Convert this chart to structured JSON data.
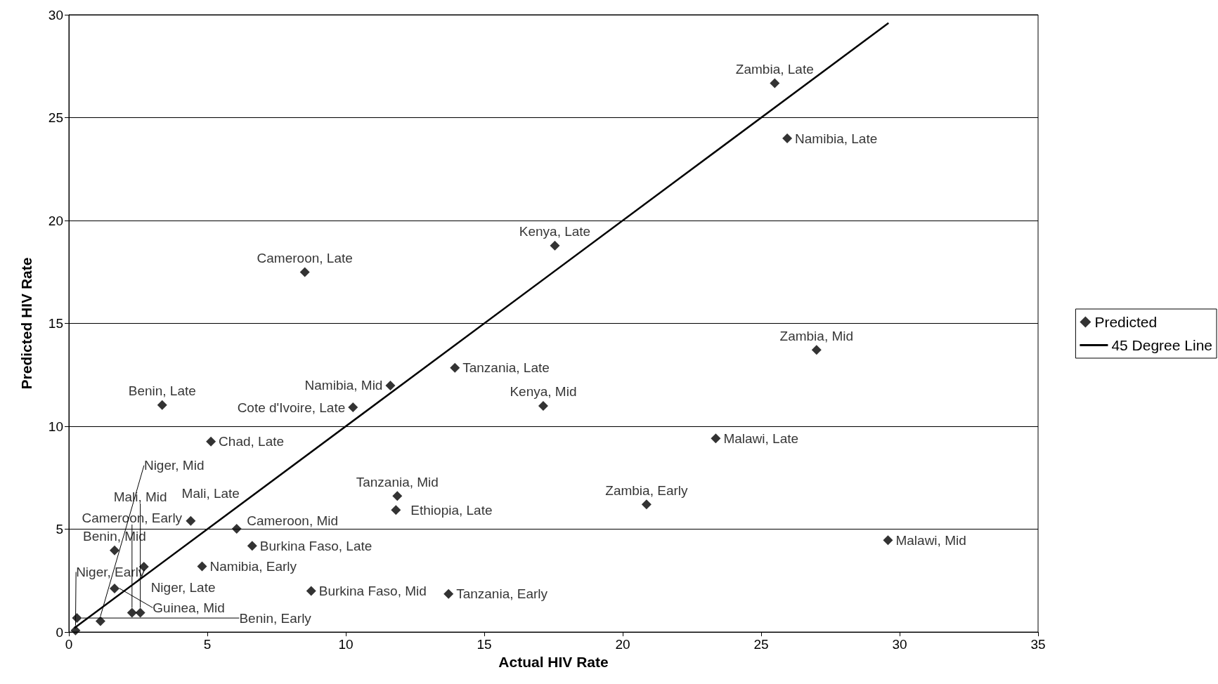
{
  "chart_data": {
    "type": "scatter",
    "xlabel": "Actual HIV Rate",
    "ylabel": "Predicted HIV Rate",
    "xlim": [
      0,
      35
    ],
    "xticks": [
      0,
      5,
      10,
      15,
      20,
      25,
      30,
      35
    ],
    "ylim": [
      0,
      30
    ],
    "yticks": [
      0,
      5,
      10,
      15,
      20,
      25,
      30
    ],
    "grid": "y",
    "legend": "right",
    "series": [
      {
        "name": "Predicted",
        "type": "scatter",
        "marker": "diamond",
        "color": "#000000",
        "x": [
          25.49,
          25.94,
          17.55,
          8.52,
          27.0,
          13.94,
          11.61,
          10.26,
          3.37,
          17.13,
          5.13,
          23.36,
          11.86,
          11.81,
          20.86,
          29.58,
          4.4,
          6.06,
          6.62,
          8.75,
          13.71,
          4.81,
          1.65,
          2.71,
          1.65,
          2.28,
          2.58,
          0.29,
          1.14,
          0.24
        ],
        "values": [
          26.67,
          23.99,
          18.78,
          17.49,
          13.71,
          12.84,
          11.98,
          10.92,
          11.03,
          10.99,
          9.26,
          9.41,
          6.61,
          5.93,
          6.2,
          4.46,
          5.4,
          5.02,
          4.19,
          2.0,
          1.85,
          3.19,
          3.97,
          3.17,
          2.12,
          0.94,
          0.94,
          0.68,
          0.53,
          0.08
        ],
        "value_labels": [
          "Zambia, Late",
          "Namibia, Late",
          "Kenya, Late",
          "Cameroon, Late",
          "Zambia, Mid",
          "Tanzania, Late",
          "Namibia, Mid",
          "Cote d'Ivoire, Late",
          "Benin, Late",
          "Kenya, Mid",
          "Chad, Late",
          "Malawi, Late",
          "Tanzania, Mid",
          "Ethiopia, Late",
          "Zambia, Early",
          "Malawi, Mid",
          "Mali, Late",
          "Cameroon, Mid",
          "Burkina Faso, Late",
          "Burkina Faso, Mid",
          "Tanzania, Early",
          "Namibia, Early",
          "Benin, Mid",
          "Niger, Late",
          "Guinea, Mid",
          "Cameroon, Early",
          "Mali, Mid",
          "Benin, Early",
          "Niger, Mid",
          "Niger, Early"
        ]
      },
      {
        "name": "45 Degree Line",
        "type": "line",
        "marker": "none",
        "line_style": "solid",
        "color": "#000000",
        "x": [
          0.2,
          29.6
        ],
        "values": [
          0.2,
          29.6
        ]
      }
    ]
  }
}
